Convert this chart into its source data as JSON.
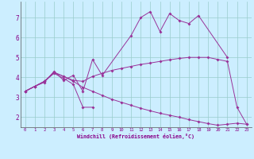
{
  "xlabel": "Windchill (Refroidissement éolien,°C)",
  "background_color": "#cceeff",
  "grid_color": "#99cccc",
  "line_color": "#993399",
  "xlim": [
    -0.5,
    23.5
  ],
  "ylim": [
    1.5,
    7.8
  ],
  "yticks": [
    2,
    3,
    4,
    5,
    6,
    7
  ],
  "xticks": [
    0,
    1,
    2,
    3,
    4,
    5,
    6,
    7,
    8,
    9,
    10,
    11,
    12,
    13,
    14,
    15,
    16,
    17,
    18,
    19,
    20,
    21,
    22,
    23
  ],
  "series": [
    [
      3.3,
      3.55,
      3.75,
      4.3,
      3.85,
      4.1,
      3.3,
      4.9,
      4.1,
      null,
      null,
      6.1,
      7.0,
      7.3,
      6.3,
      7.2,
      6.85,
      6.7,
      7.1,
      null,
      null,
      5.0,
      null,
      null
    ],
    [
      3.3,
      3.55,
      3.8,
      4.2,
      3.95,
      3.65,
      2.5,
      2.5,
      null,
      null,
      null,
      null,
      null,
      null,
      null,
      null,
      null,
      null,
      null,
      null,
      null,
      null,
      null,
      null
    ],
    [
      3.3,
      3.55,
      3.8,
      4.25,
      4.05,
      3.8,
      3.5,
      3.3,
      3.1,
      2.9,
      2.75,
      2.6,
      2.45,
      2.32,
      2.2,
      2.1,
      2.0,
      1.88,
      1.78,
      1.68,
      1.6,
      1.65,
      1.7,
      1.65
    ],
    [
      3.3,
      3.55,
      3.8,
      4.25,
      4.05,
      3.85,
      3.8,
      4.05,
      4.2,
      4.35,
      4.45,
      4.55,
      4.65,
      4.72,
      4.8,
      4.88,
      4.95,
      5.0,
      5.0,
      5.0,
      4.9,
      4.8,
      2.5,
      1.65
    ]
  ]
}
